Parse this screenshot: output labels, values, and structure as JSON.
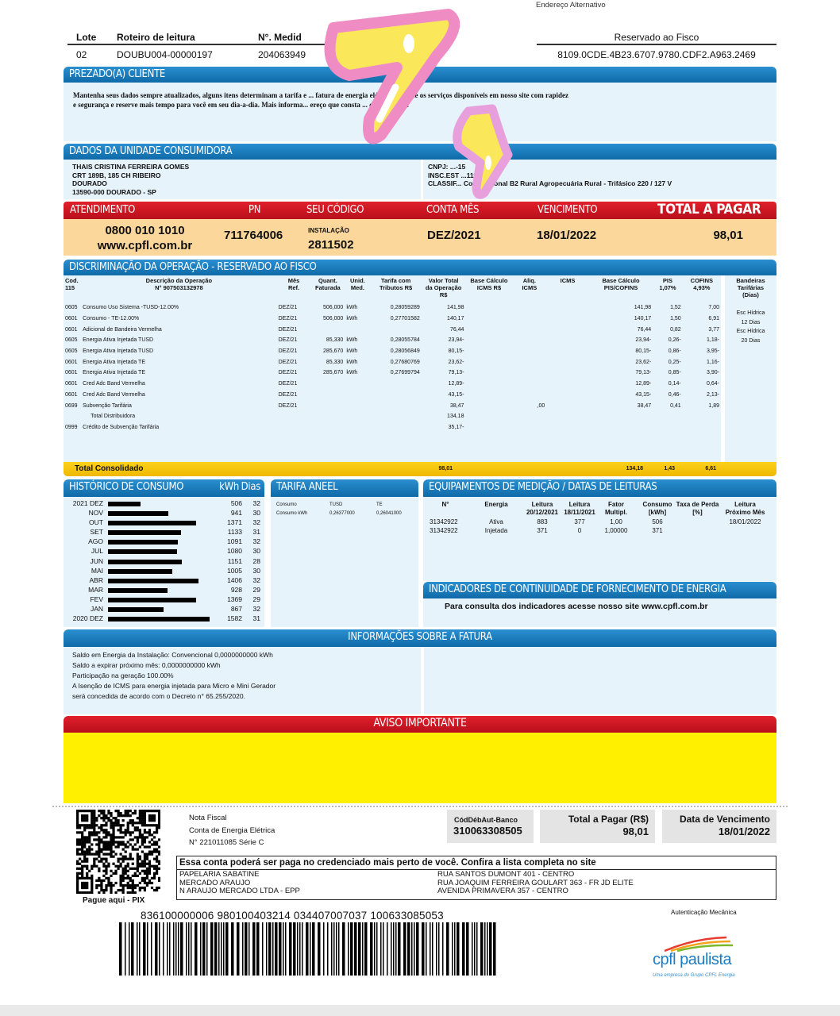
{
  "top": {
    "alt_address": "Endereço Alternativo",
    "lote_label": "Lote",
    "roteiro_label": "Roteiro de leitura",
    "medidor_label": "N°. Medid",
    "lote": "02",
    "roteiro": "DOUBU004-00000197",
    "medidor": "204063949",
    "partial": "711",
    "fisco_label": "Reservado ao Fisco",
    "fisco_code": "8109.0CDE.4B23.6707.9780.CDF2.A963.2469"
  },
  "prezado": {
    "title": "PREZADO(A) CLIENTE",
    "line1": "Mantenha seus dados sempre atualizados, alguns itens determinam a tarifa e ... fatura de energia elétrica. Solicite os serviços disponíveis em nosso site com rapidez",
    "line2": "e segurança e reserve mais tempo para você em seu dia-a-dia. Mais informa... ereço que consta ... de sua conta."
  },
  "unidade": {
    "title": "DADOS DA UNIDADE CONSUMIDORA",
    "name": "THAIS CRISTINA FERREIRA GOMES",
    "address": "CRT 189B, 185 CH RIBEIRO",
    "district": "DOURADO",
    "city": "13590-000 DOURADO - SP",
    "cnpj": "CNPJ: ...-15",
    "insc": "INSC.EST ...111",
    "classif": "CLASSIF... Convencional B2 Rural Agropecuária Rural - Trifásico 220 / 127 V"
  },
  "summary": {
    "atendimento_label": "ATENDIMENTO",
    "pn_label": "PN",
    "codigo_label": "SEU CÓDIGO",
    "conta_label": "CONTA MÊS",
    "venc_label": "VENCIMENTO",
    "total_label": "TOTAL A PAGAR",
    "phone": "0800 010 1010",
    "site": "www.cpfl.com.br",
    "pn": "711764006",
    "instalacao_label": "INSTALAÇÃO",
    "instalacao": "2811502",
    "conta": "DEZ/2021",
    "vencimento": "18/01/2022",
    "total": "98,01"
  },
  "disc": {
    "title": "DISCRIMINAÇÃO DA OPERAÇÃO - RESERVADO AO FISCO",
    "headers": [
      "Cod.\n115",
      "Descrição da Operação\nN° 907503132978",
      "Mês\nRef.",
      "Quant.\nFaturada",
      "Unid.\nMed.",
      "Tarifa com\nTributos R$",
      "Valor Total\nda Operação\nR$",
      "Base Cálculo\nICMS R$",
      "Aliq.\nICMS",
      "ICMS",
      "Base Cálculo\nPIS/COFINS",
      "PIS\n1,07%",
      "COFINS\n4,93%",
      "Bandeiras\nTarifárias\n(Dias)"
    ],
    "rows": [
      [
        "0605",
        "Consumo Uso Sistema -TUSD-12.00%",
        "DEZ/21",
        "506,000",
        "kWh",
        "0,28059289",
        "141,98",
        "",
        "",
        "",
        "141,98",
        "1,52",
        "7,00"
      ],
      [
        "0601",
        "Consumo - TE-12.00%",
        "DEZ/21",
        "506,000",
        "kWh",
        "0,27701582",
        "140,17",
        "",
        "",
        "",
        "140,17",
        "1,50",
        "6,91"
      ],
      [
        "0601",
        "Adicional de Bandeira Vermelha",
        "DEZ/21",
        "",
        "",
        "",
        "76,44",
        "",
        "",
        "",
        "76,44",
        "0,82",
        "3,77"
      ],
      [
        "0605",
        "Energia Ativa Injetada TUSD",
        "DEZ/21",
        "85,330",
        "kWh",
        "0,28055784",
        "23,94-",
        "",
        "",
        "",
        "23,94-",
        "0,26-",
        "1,18-"
      ],
      [
        "0605",
        "Energia Ativa Injetada TUSD",
        "DEZ/21",
        "285,670",
        "kWh",
        "0,28056849",
        "80,15-",
        "",
        "",
        "",
        "80,15-",
        "0,86-",
        "3,95-"
      ],
      [
        "0601",
        "Energia Ativa Injetada TE",
        "DEZ/21",
        "85,330",
        "kWh",
        "0,27680769",
        "23,62-",
        "",
        "",
        "",
        "23,62-",
        "0,25-",
        "1,16-"
      ],
      [
        "0601",
        "Energia Ativa Injetada TE",
        "DEZ/21",
        "285,670",
        "kWh",
        "0,27699794",
        "79,13-",
        "",
        "",
        "",
        "79,13-",
        "0,85-",
        "3,90-"
      ],
      [
        "0601",
        "Cred Adc Band Vermelha",
        "DEZ/21",
        "",
        "",
        "",
        "12,89-",
        "",
        "",
        "",
        "12,89-",
        "0,14-",
        "0,64-"
      ],
      [
        "0601",
        "Cred Adc Band Vermelha",
        "DEZ/21",
        "",
        "",
        "",
        "43,15-",
        "",
        "",
        "",
        "43,15-",
        "0,46-",
        "2,13-"
      ],
      [
        "0699",
        "Subvenção Tarifária",
        "DEZ/21",
        "",
        "",
        "",
        "38,47",
        "",
        ",00",
        "",
        "38,47",
        "0,41",
        "1,89"
      ],
      [
        "",
        "Total Distribuidora",
        "",
        "",
        "",
        "",
        "134,18",
        "",
        "",
        "",
        "",
        "",
        ""
      ],
      [
        "0999",
        "Crédito de Subvenção Tarifária",
        "",
        "",
        "",
        "",
        "35,17-",
        "",
        "",
        "",
        "",
        "",
        ""
      ]
    ],
    "bandeiras": [
      "Esc Hídrica",
      "12 Dias",
      "Esc Hídrica",
      "20 Dias"
    ],
    "total_label": "Total Consolidado",
    "total_valor": "98,01",
    "total_base": "134,18",
    "total_pis": "1,43",
    "total_cofins": "6,61"
  },
  "historico": {
    "title": "HISTÓRICO DE CONSUMO",
    "kwh_label": "kWh",
    "dias_label": "Dias",
    "rows": [
      [
        "2021 DEZ",
        506,
        32
      ],
      [
        "NOV",
        941,
        30
      ],
      [
        "OUT",
        1371,
        32
      ],
      [
        "SET",
        1133,
        31
      ],
      [
        "AGO",
        1091,
        32
      ],
      [
        "JUL",
        1080,
        30
      ],
      [
        "JUN",
        1151,
        28
      ],
      [
        "MAI",
        1005,
        30
      ],
      [
        "ABR",
        1406,
        32
      ],
      [
        "MAR",
        928,
        29
      ],
      [
        "FEV",
        1369,
        29
      ],
      [
        "JAN",
        867,
        32
      ],
      [
        "2020 DEZ",
        1582,
        31
      ]
    ]
  },
  "tarifa": {
    "title": "TARIFA ANEEL",
    "h1": "Consumo",
    "h2": "TUSD",
    "h3": "TE",
    "r1": "Consumo kWh",
    "tusd": "0,26377000",
    "te": "0,26041000"
  },
  "equip": {
    "title": "EQUIPAMENTOS DE MEDIÇÃO / DATAS DE LEITURAS",
    "headers": [
      "N°",
      "Energia",
      "Leitura\n20/12/2021",
      "Leitura\n18/11/2021",
      "Fator\nMultipl.",
      "Consumo\n[kWh]",
      "Taxa de Perda\n[%]",
      "Leitura\nPróximo Mês"
    ],
    "rows": [
      [
        "31342922",
        "Ativa",
        "883",
        "377",
        "1,00",
        "506",
        "",
        "18/01/2022"
      ],
      [
        "31342922",
        "Injetada",
        "371",
        "0",
        "1,00000",
        "371",
        "",
        ""
      ]
    ]
  },
  "indicadores": {
    "title": "INDICADORES DE CONTINUIDADE DE FORNECIMENTO DE ENERGIA",
    "text": "Para consulta dos indicadores acesse nosso site www.cpfl.com.br"
  },
  "info": {
    "title": "INFORMAÇÕES SOBRE A FATURA",
    "lines": [
      "Saldo em Energia da Instalação: Convencional 0,0000000000 kWh",
      "Saldo a expirar próximo mês: 0,0000000000 kWh",
      "Participação na geração 100.00%",
      "A Isenção de ICMS para energia injetada para Micro e Mini Gerador",
      "será concedida de acordo com o Decreto n° 65.255/2020."
    ]
  },
  "aviso": {
    "title": "AVISO IMPORTANTE"
  },
  "stub": {
    "nf1": "Nota Fiscal",
    "nf2": "Conta de Energia Elétrica",
    "nf3": "N° 221011085 Série C",
    "cod_label": "CódDébAut-Banco",
    "cod": "310063308505",
    "total_label": "Total a Pagar (R$)",
    "total": "98,01",
    "venc_label": "Data de Vencimento",
    "venc": "18/01/2022",
    "pix": "Pague aqui - PIX",
    "cred_title": "Essa conta poderá ser paga no credenciado mais perto de você. Confira a lista completa no site",
    "cred": [
      [
        "PAPELARIA SABATINE",
        "RUA SANTOS DUMONT 401 - CENTRO"
      ],
      [
        "MERCADO ARAUJO",
        "RUA JOAQUIM FERREIRA GOULART 363 - FR JD ELITE"
      ],
      [
        "N ARAUJO MERCADO LTDA - EPP",
        "AVENIDA PRIMAVERA 357 - CENTRO"
      ]
    ],
    "barcode_number": "836100000006 980100403214 034407007037 100633085053",
    "autent": "Autenticação Mecânica"
  },
  "logo": {
    "brand": "cpfl paulista",
    "tagline": "Uma empresa do Grupo CPFL Energia"
  },
  "colors": {
    "blue": "#1679bd",
    "red": "#c8102e",
    "orange": "#fbd79a",
    "yellow": "#fff000",
    "total_bar": "#f7c600",
    "light": "#e6f3fb"
  }
}
